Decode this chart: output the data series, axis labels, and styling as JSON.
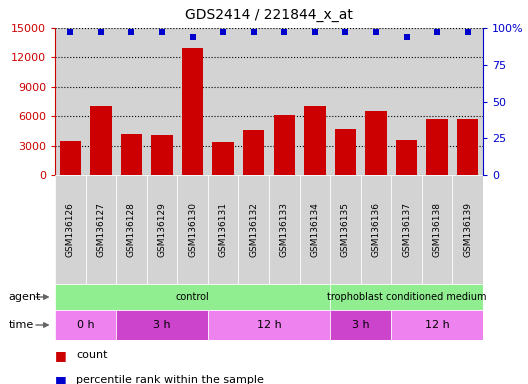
{
  "title": "GDS2414 / 221844_x_at",
  "samples": [
    "GSM136126",
    "GSM136127",
    "GSM136128",
    "GSM136129",
    "GSM136130",
    "GSM136131",
    "GSM136132",
    "GSM136133",
    "GSM136134",
    "GSM136135",
    "GSM136136",
    "GSM136137",
    "GSM136138",
    "GSM136139"
  ],
  "counts": [
    3500,
    7000,
    4200,
    4100,
    13000,
    3400,
    4600,
    6100,
    7000,
    4700,
    6500,
    3600,
    5700,
    5700
  ],
  "percentile_ranks": [
    97,
    97,
    97,
    97,
    94,
    97,
    97,
    97,
    97,
    97,
    97,
    94,
    97,
    97
  ],
  "ylim_left": [
    0,
    15000
  ],
  "ylim_right": [
    0,
    100
  ],
  "yticks_left": [
    0,
    3000,
    6000,
    9000,
    12000,
    15000
  ],
  "yticks_right": [
    0,
    25,
    50,
    75,
    100
  ],
  "bar_color": "#cc0000",
  "marker_color": "#0000cc",
  "bg_color": "#d3d3d3",
  "agent_groups": [
    {
      "text": "control",
      "span": [
        0,
        9
      ],
      "color": "#90ee90"
    },
    {
      "text": "trophoblast conditioned medium",
      "span": [
        9,
        14
      ],
      "color": "#90ee90"
    }
  ],
  "time_groups": [
    {
      "text": "0 h",
      "span": [
        0,
        2
      ],
      "color": "#ee82ee"
    },
    {
      "text": "3 h",
      "span": [
        2,
        5
      ],
      "color": "#cc44cc"
    },
    {
      "text": "12 h",
      "span": [
        5,
        9
      ],
      "color": "#ee82ee"
    },
    {
      "text": "3 h",
      "span": [
        9,
        11
      ],
      "color": "#cc44cc"
    },
    {
      "text": "12 h",
      "span": [
        11,
        14
      ],
      "color": "#ee82ee"
    }
  ],
  "fig_width": 5.28,
  "fig_height": 3.84,
  "dpi": 100
}
